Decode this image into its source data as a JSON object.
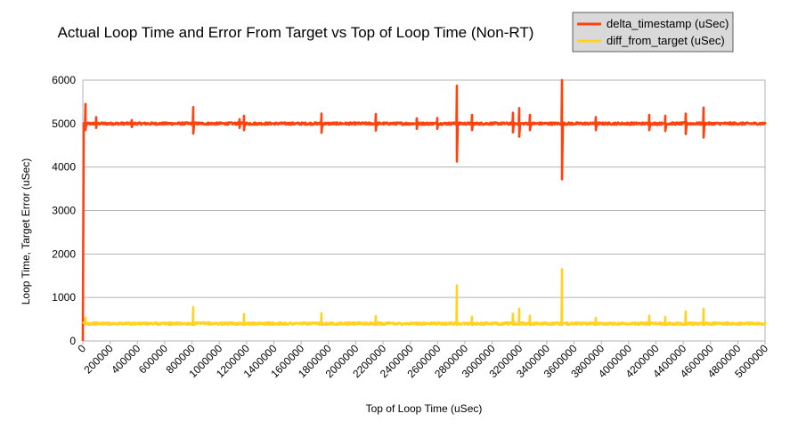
{
  "chart_data": {
    "type": "line",
    "title": "Actual Loop Time and Error From Target vs Top of Loop Time (Non-RT)",
    "xlabel": "Top of Loop Time (uSec)",
    "ylabel": "Loop Time, Target Error (uSec)",
    "xlim": [
      0,
      5000000
    ],
    "ylim": [
      0,
      6000
    ],
    "grid": "horizontal",
    "legend_position": "top-right",
    "x_ticks": [
      "0",
      "200000",
      "400000",
      "600000",
      "800000",
      "1000000",
      "1200000",
      "1400000",
      "1600000",
      "1800000",
      "2000000",
      "2200000",
      "2400000",
      "2600000",
      "2800000",
      "3000000",
      "3200000",
      "3400000",
      "3600000",
      "3800000",
      "4000000",
      "4200000",
      "4400000",
      "4600000",
      "4800000",
      "5000000"
    ],
    "y_ticks": [
      "0",
      "1000",
      "2000",
      "3000",
      "4000",
      "5000",
      "6000"
    ],
    "series": [
      {
        "name": "delta_timestamp (uSec)",
        "color": "#ff420e",
        "baseline": 5000,
        "start": [
          0,
          0
        ],
        "spikes": [
          [
            20000,
            5450,
            4850
          ],
          [
            100000,
            5150,
            4900
          ],
          [
            360000,
            5080,
            4920
          ],
          [
            810000,
            5380,
            4770
          ],
          [
            1150000,
            5100,
            4900
          ],
          [
            1180000,
            5180,
            4850
          ],
          [
            1750000,
            5230,
            4790
          ],
          [
            2150000,
            5220,
            4840
          ],
          [
            2450000,
            5120,
            4880
          ],
          [
            2600000,
            5130,
            4880
          ],
          [
            2740000,
            5870,
            4130
          ],
          [
            2850000,
            5200,
            4850
          ],
          [
            3150000,
            5250,
            4800
          ],
          [
            3200000,
            5360,
            4700
          ],
          [
            3280000,
            5200,
            4850
          ],
          [
            3510000,
            6000,
            3720
          ],
          [
            3760000,
            5150,
            4850
          ],
          [
            4150000,
            5200,
            4850
          ],
          [
            4270000,
            5180,
            4830
          ],
          [
            4420000,
            5230,
            4760
          ],
          [
            4550000,
            5370,
            4680
          ]
        ]
      },
      {
        "name": "diff_from_target (uSec)",
        "color": "#ffd320",
        "baseline": 400,
        "start": [
          0,
          400
        ],
        "spikes": [
          [
            20000,
            530,
            380
          ],
          [
            810000,
            780,
            370
          ],
          [
            1180000,
            620,
            370
          ],
          [
            1750000,
            640,
            370
          ],
          [
            2150000,
            570,
            370
          ],
          [
            2740000,
            1280,
            370
          ],
          [
            2850000,
            560,
            370
          ],
          [
            3150000,
            630,
            370
          ],
          [
            3200000,
            740,
            370
          ],
          [
            3280000,
            580,
            370
          ],
          [
            3510000,
            1650,
            370
          ],
          [
            3760000,
            530,
            370
          ],
          [
            4150000,
            580,
            370
          ],
          [
            4270000,
            550,
            370
          ],
          [
            4420000,
            680,
            370
          ],
          [
            4550000,
            740,
            370
          ]
        ]
      }
    ]
  }
}
